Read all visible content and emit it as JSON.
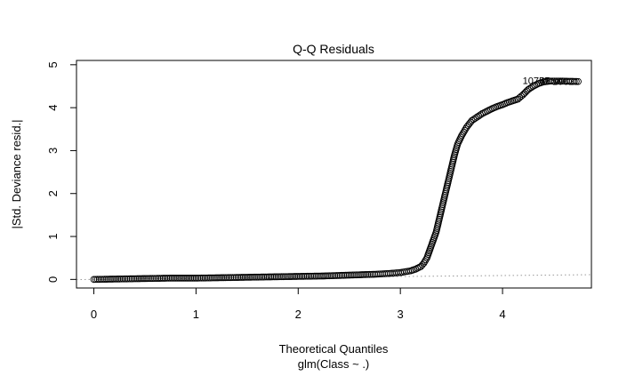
{
  "chart_data": {
    "type": "scatter",
    "title": "Q-Q Residuals",
    "xlabel": "Theoretical Quantiles",
    "subtitle": "glm(Class ~ .)",
    "ylabel": "|Std. Deviance resid.|",
    "xlim": [
      -0.17,
      4.87
    ],
    "ylim": [
      -0.2,
      5.1
    ],
    "x_ticks": [
      "0",
      "1",
      "2",
      "3",
      "4"
    ],
    "y_ticks": [
      "0",
      "1",
      "2",
      "3",
      "4",
      "5"
    ],
    "grid": false,
    "reference_line": {
      "style": "dotted",
      "color": "#999999",
      "slope": 0.0226,
      "intercept": 0
    },
    "annotations": [
      {
        "text": "10757",
        "x": 4.33,
        "y": 4.63
      },
      {
        "text": "10621",
        "x": 4.62,
        "y": 4.61
      },
      {
        "text": "4558",
        "x": 4.47,
        "y": 4.62
      }
    ],
    "series": [
      {
        "marker": "circle-open",
        "color": "#000000",
        "points": [
          [
            0.0,
            0.0
          ],
          [
            0.25,
            0.01
          ],
          [
            0.5,
            0.02
          ],
          [
            0.75,
            0.03
          ],
          [
            1.0,
            0.03
          ],
          [
            1.25,
            0.04
          ],
          [
            1.5,
            0.05
          ],
          [
            1.75,
            0.06
          ],
          [
            2.0,
            0.07
          ],
          [
            2.25,
            0.08
          ],
          [
            2.5,
            0.1
          ],
          [
            2.75,
            0.12
          ],
          [
            2.9,
            0.14
          ],
          [
            3.0,
            0.16
          ],
          [
            3.1,
            0.2
          ],
          [
            3.15,
            0.24
          ],
          [
            3.2,
            0.3
          ],
          [
            3.23,
            0.38
          ],
          [
            3.26,
            0.5
          ],
          [
            3.29,
            0.7
          ],
          [
            3.32,
            0.9
          ],
          [
            3.35,
            1.1
          ],
          [
            3.38,
            1.4
          ],
          [
            3.41,
            1.7
          ],
          [
            3.44,
            2.0
          ],
          [
            3.47,
            2.3
          ],
          [
            3.5,
            2.6
          ],
          [
            3.53,
            2.9
          ],
          [
            3.56,
            3.15
          ],
          [
            3.6,
            3.35
          ],
          [
            3.65,
            3.55
          ],
          [
            3.7,
            3.7
          ],
          [
            3.75,
            3.78
          ],
          [
            3.8,
            3.86
          ],
          [
            3.85,
            3.92
          ],
          [
            3.9,
            3.98
          ],
          [
            3.95,
            4.03
          ],
          [
            4.0,
            4.07
          ],
          [
            4.05,
            4.12
          ],
          [
            4.1,
            4.16
          ],
          [
            4.15,
            4.2
          ],
          [
            4.2,
            4.3
          ],
          [
            4.25,
            4.42
          ],
          [
            4.3,
            4.5
          ],
          [
            4.35,
            4.56
          ],
          [
            4.4,
            4.6
          ],
          [
            4.47,
            4.62
          ],
          [
            4.55,
            4.62
          ],
          [
            4.74,
            4.61
          ]
        ]
      }
    ]
  }
}
